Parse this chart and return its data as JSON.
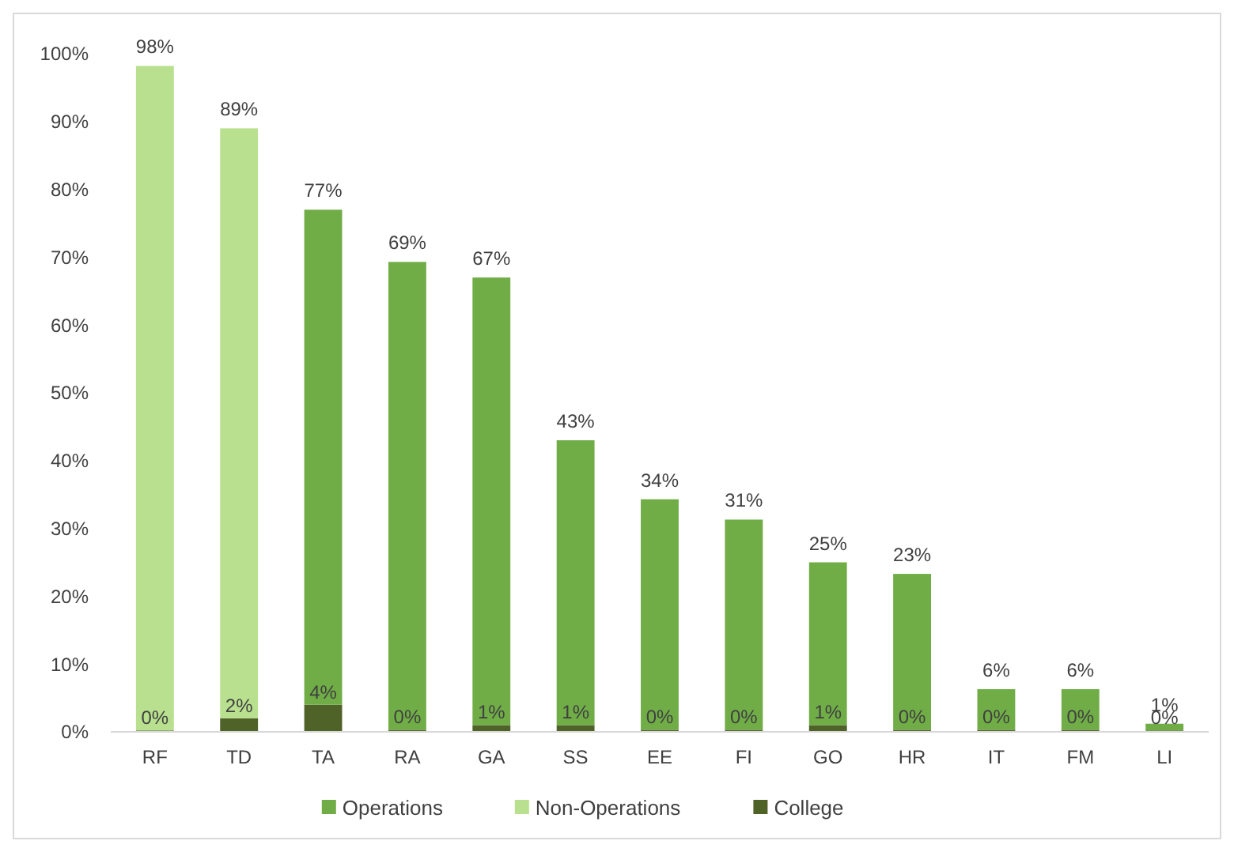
{
  "chart_data": {
    "type": "bar",
    "stacked": true,
    "categories": [
      "RF",
      "TD",
      "TA",
      "RA",
      "GA",
      "SS",
      "EE",
      "FI",
      "GO",
      "HR",
      "IT",
      "FM",
      "LI"
    ],
    "series": [
      {
        "name": "College",
        "color": "#4f6228",
        "values": [
          0.2,
          2,
          4,
          0.3,
          1,
          1,
          0.3,
          0.3,
          1,
          0.3,
          0.3,
          0.3,
          0.2
        ],
        "value_labels": [
          "0%",
          "2%",
          "4%",
          "0%",
          "1%",
          "1%",
          "0%",
          "0%",
          "1%",
          "0%",
          "0%",
          "0%",
          "0%"
        ]
      },
      {
        "name": "Operations",
        "color": "#70ad47",
        "values": [
          null,
          null,
          73,
          69,
          66,
          42,
          34,
          31,
          24,
          23,
          6,
          6,
          1
        ]
      },
      {
        "name": "Non-Operations",
        "color": "#b9e08f",
        "values": [
          98,
          87,
          null,
          null,
          null,
          null,
          null,
          null,
          null,
          null,
          null,
          null,
          null
        ]
      }
    ],
    "totals": [
      "98%",
      "89%",
      "77%",
      "69%",
      "67%",
      "43%",
      "34%",
      "31%",
      "25%",
      "23%",
      "6%",
      "6%",
      "1%"
    ],
    "ylim": [
      0,
      100
    ],
    "yticks": [
      {
        "value": 0,
        "label": "0%"
      },
      {
        "value": 10,
        "label": "10%"
      },
      {
        "value": 20,
        "label": "20%"
      },
      {
        "value": 30,
        "label": "30%"
      },
      {
        "value": 40,
        "label": "40%"
      },
      {
        "value": 50,
        "label": "50%"
      },
      {
        "value": 60,
        "label": "60%"
      },
      {
        "value": 70,
        "label": "70%"
      },
      {
        "value": 80,
        "label": "80%"
      },
      {
        "value": 90,
        "label": "90%"
      },
      {
        "value": 100,
        "label": "100%"
      }
    ],
    "grid": false,
    "legend": "bottom"
  }
}
